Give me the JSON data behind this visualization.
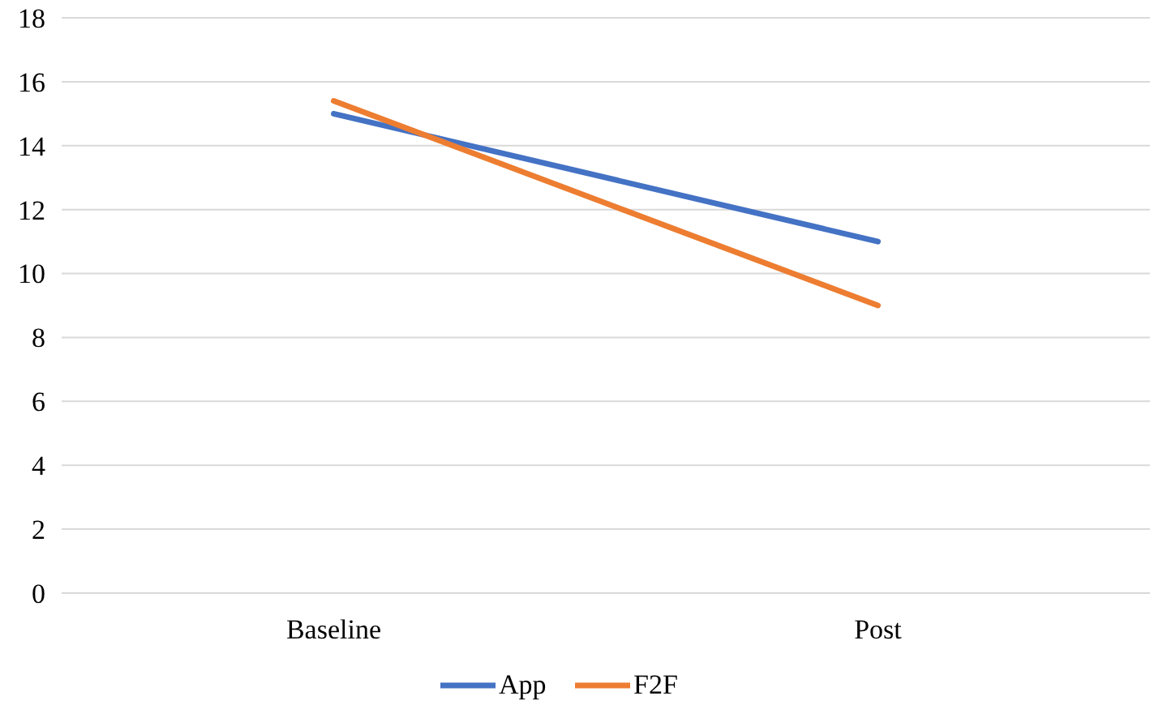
{
  "chart_data": {
    "type": "line",
    "categories": [
      "Baseline",
      "Post"
    ],
    "series": [
      {
        "name": "App",
        "color": "#4472c4",
        "values": [
          15,
          11
        ]
      },
      {
        "name": "F2F",
        "color": "#ed7d31",
        "values": [
          15.4,
          9
        ]
      }
    ],
    "ylim": [
      0,
      18
    ],
    "yticks": [
      0,
      2,
      4,
      6,
      8,
      10,
      12,
      14,
      16,
      18
    ],
    "grid": "y",
    "legend": "bottom",
    "marker": "none",
    "line_style": "solid"
  }
}
